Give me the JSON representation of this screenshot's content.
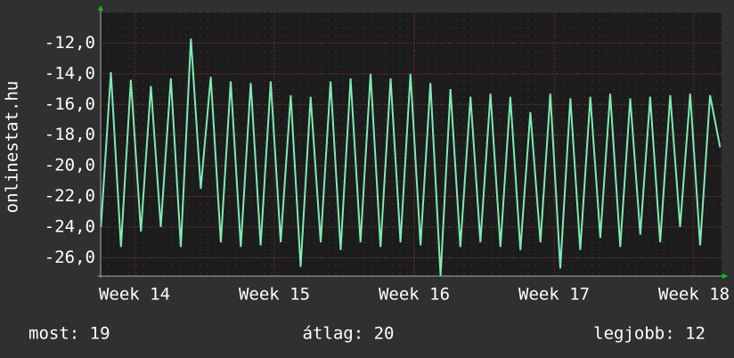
{
  "chart_data": {
    "type": "line",
    "y_label": "onlinestat.hu",
    "x": [
      13.76,
      13.831,
      13.903,
      13.974,
      14.046,
      14.117,
      14.188,
      14.26,
      14.331,
      14.403,
      14.474,
      14.545,
      14.617,
      14.688,
      14.76,
      14.831,
      14.902,
      14.974,
      15.045,
      15.117,
      15.188,
      15.259,
      15.331,
      15.402,
      15.474,
      15.545,
      15.616,
      15.688,
      15.759,
      15.831,
      15.902,
      15.973,
      16.045,
      16.116,
      16.188,
      16.259,
      16.33,
      16.402,
      16.473,
      16.545,
      16.616,
      16.687,
      16.759,
      16.83,
      16.902,
      16.973,
      17.044,
      17.116,
      17.187,
      17.259,
      17.33,
      17.401,
      17.473,
      17.544,
      17.616,
      17.687,
      17.758,
      17.83,
      17.901,
      17.973,
      18.044,
      18.115,
      18.187
    ],
    "series": [
      {
        "color": "#7eeab4",
        "values": [
          -24.0,
          -13.9,
          -25.3,
          -14.4,
          -24.3,
          -14.8,
          -24.0,
          -14.3,
          -25.3,
          -11.7,
          -21.5,
          -14.2,
          -25.0,
          -14.5,
          -25.3,
          -14.6,
          -25.2,
          -14.5,
          -25.0,
          -15.4,
          -26.6,
          -15.5,
          -25.0,
          -14.5,
          -25.5,
          -14.3,
          -25.0,
          -14.0,
          -25.3,
          -14.3,
          -25.0,
          -14.0,
          -25.2,
          -14.6,
          -27.2,
          -15.0,
          -25.3,
          -15.5,
          -25.0,
          -15.3,
          -25.3,
          -15.5,
          -25.5,
          -16.5,
          -25.0,
          -15.3,
          -26.7,
          -15.6,
          -25.5,
          -15.5,
          -24.7,
          -15.3,
          -25.3,
          -15.6,
          -24.5,
          -15.5,
          -25.0,
          -15.4,
          -24.0,
          -15.3,
          -25.2,
          -15.4,
          -18.8
        ]
      }
    ],
    "xlim": [
      13.758,
      18.197
    ],
    "xticks": [
      {
        "value": 14,
        "label": "Week 14"
      },
      {
        "value": 15,
        "label": "Week 15"
      },
      {
        "value": 16,
        "label": "Week 16"
      },
      {
        "value": 17,
        "label": "Week 17"
      },
      {
        "value": 18,
        "label": "Week 18"
      }
    ],
    "ylim": [
      -27.2,
      -10.0
    ],
    "yticks": [
      {
        "value": -26,
        "label": "-26,0"
      },
      {
        "value": -24,
        "label": "-24,0"
      },
      {
        "value": -22,
        "label": "-22,0"
      },
      {
        "value": -20,
        "label": "-20,0"
      },
      {
        "value": -18,
        "label": "-18,0"
      },
      {
        "value": -16,
        "label": "-16,0"
      },
      {
        "value": -14,
        "label": "-14,0"
      },
      {
        "value": -12,
        "label": "-12,0"
      }
    ],
    "grid": true,
    "stats": [
      "most: 19",
      "átlag: 20",
      "legjobb: 12"
    ]
  }
}
